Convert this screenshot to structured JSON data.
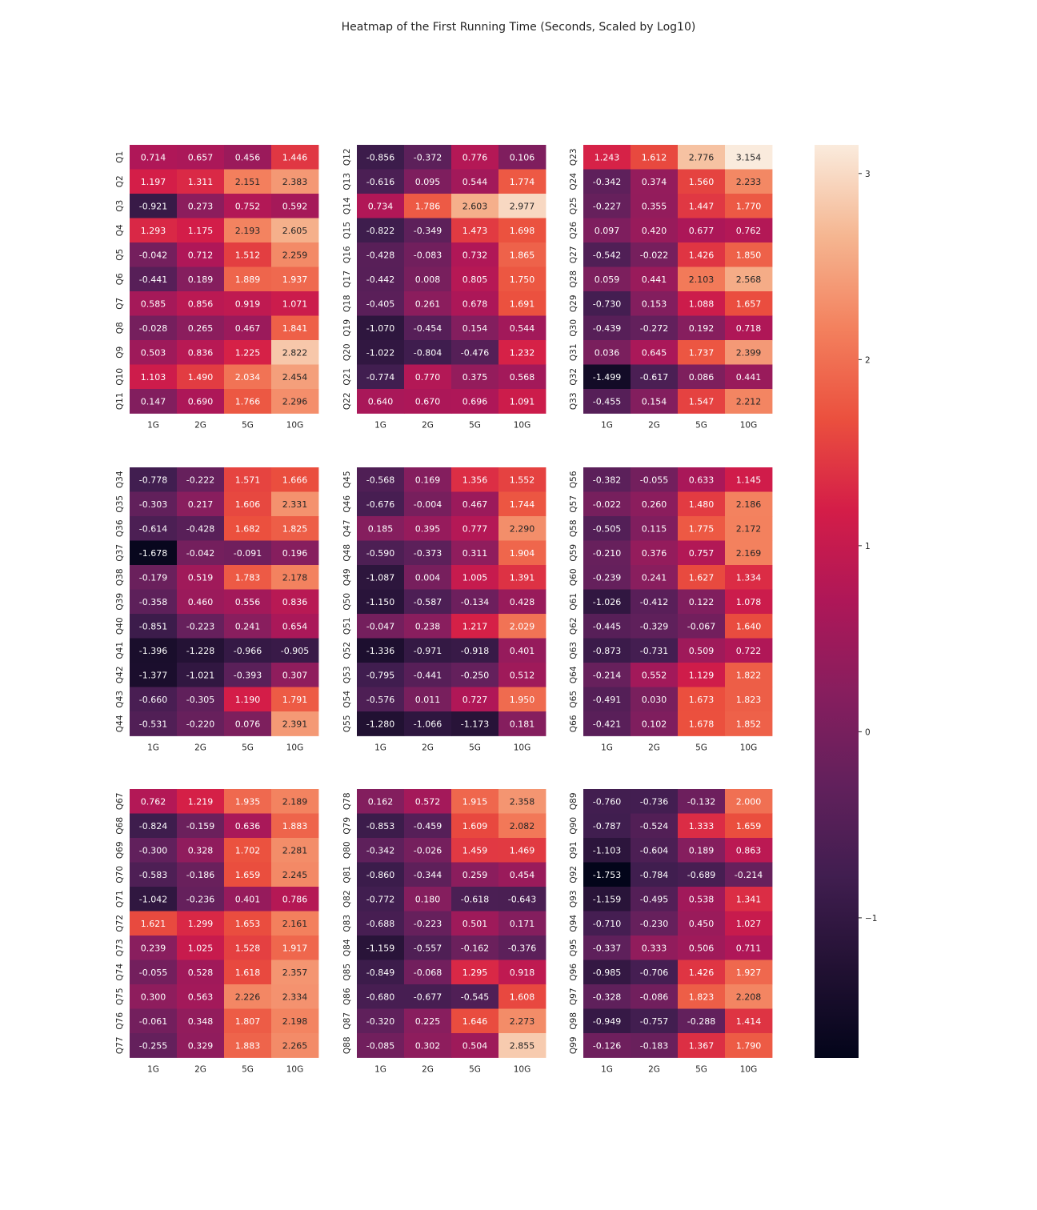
{
  "chart_data": {
    "type": "heatmap",
    "title": "Heatmap of the First Running Time (Seconds, Scaled by Log10)",
    "columns": [
      "1G",
      "2G",
      "5G",
      "10G"
    ],
    "colorbar": {
      "min": -1.753,
      "max": 3.154,
      "ticks": [
        -1,
        0,
        1,
        2,
        3
      ],
      "tick_labels": [
        "−1",
        "0",
        "1",
        "2",
        "3"
      ]
    },
    "panels": [
      {
        "rows": [
          "Q1",
          "Q2",
          "Q3",
          "Q4",
          "Q5",
          "Q6",
          "Q7",
          "Q8",
          "Q9",
          "Q10",
          "Q11"
        ],
        "values": [
          [
            0.714,
            0.657,
            0.456,
            1.446
          ],
          [
            1.197,
            1.311,
            2.151,
            2.383
          ],
          [
            -0.921,
            0.273,
            0.752,
            0.592
          ],
          [
            1.293,
            1.175,
            2.193,
            2.605
          ],
          [
            -0.042,
            0.712,
            1.512,
            2.259
          ],
          [
            -0.441,
            0.189,
            1.889,
            1.937
          ],
          [
            0.585,
            0.856,
            0.919,
            1.071
          ],
          [
            -0.028,
            0.265,
            0.467,
            1.841
          ],
          [
            0.503,
            0.836,
            1.225,
            2.822
          ],
          [
            1.103,
            1.49,
            2.034,
            2.454
          ],
          [
            0.147,
            0.69,
            1.766,
            2.296
          ]
        ]
      },
      {
        "rows": [
          "Q12",
          "Q13",
          "Q14",
          "Q15",
          "Q16",
          "Q17",
          "Q18",
          "Q19",
          "Q20",
          "Q21",
          "Q22"
        ],
        "values": [
          [
            -0.856,
            -0.372,
            0.776,
            0.106
          ],
          [
            -0.616,
            0.095,
            0.544,
            1.774
          ],
          [
            0.734,
            1.786,
            2.603,
            2.977
          ],
          [
            -0.822,
            -0.349,
            1.473,
            1.698
          ],
          [
            -0.428,
            -0.083,
            0.732,
            1.865
          ],
          [
            -0.442,
            0.008,
            0.805,
            1.75
          ],
          [
            -0.405,
            0.261,
            0.678,
            1.691
          ],
          [
            -1.07,
            -0.454,
            0.154,
            0.544
          ],
          [
            -1.022,
            -0.804,
            -0.476,
            1.232
          ],
          [
            -0.774,
            0.77,
            0.375,
            0.568
          ],
          [
            0.64,
            0.67,
            0.696,
            1.091
          ]
        ]
      },
      {
        "rows": [
          "Q23",
          "Q24",
          "Q25",
          "Q26",
          "Q27",
          "Q28",
          "Q29",
          "Q30",
          "Q31",
          "Q32",
          "Q33"
        ],
        "values": [
          [
            1.243,
            1.612,
            2.776,
            3.154
          ],
          [
            -0.342,
            0.374,
            1.56,
            2.233
          ],
          [
            -0.227,
            0.355,
            1.447,
            1.77
          ],
          [
            0.097,
            0.42,
            0.677,
            0.762
          ],
          [
            -0.542,
            -0.022,
            1.426,
            1.85
          ],
          [
            0.059,
            0.441,
            2.103,
            2.568
          ],
          [
            -0.73,
            0.153,
            1.088,
            1.657
          ],
          [
            -0.439,
            -0.272,
            0.192,
            0.718
          ],
          [
            0.036,
            0.645,
            1.737,
            2.399
          ],
          [
            -1.499,
            -0.617,
            0.086,
            0.441
          ],
          [
            -0.455,
            0.154,
            1.547,
            2.212
          ]
        ]
      },
      {
        "rows": [
          "Q34",
          "Q35",
          "Q36",
          "Q37",
          "Q38",
          "Q39",
          "Q40",
          "Q41",
          "Q42",
          "Q43",
          "Q44"
        ],
        "values": [
          [
            -0.778,
            -0.222,
            1.571,
            1.666
          ],
          [
            -0.303,
            0.217,
            1.606,
            2.331
          ],
          [
            -0.614,
            -0.428,
            1.682,
            1.825
          ],
          [
            -1.678,
            -0.042,
            -0.091,
            0.196
          ],
          [
            -0.179,
            0.519,
            1.783,
            2.178
          ],
          [
            -0.358,
            0.46,
            0.556,
            0.836
          ],
          [
            -0.851,
            -0.223,
            0.241,
            0.654
          ],
          [
            -1.396,
            -1.228,
            -0.966,
            -0.905
          ],
          [
            -1.377,
            -1.021,
            -0.393,
            0.307
          ],
          [
            -0.66,
            -0.305,
            1.19,
            1.791
          ],
          [
            -0.531,
            -0.22,
            0.076,
            2.391
          ]
        ]
      },
      {
        "rows": [
          "Q45",
          "Q46",
          "Q47",
          "Q48",
          "Q49",
          "Q50",
          "Q51",
          "Q52",
          "Q53",
          "Q54",
          "Q55"
        ],
        "values": [
          [
            -0.568,
            0.169,
            1.356,
            1.552
          ],
          [
            -0.676,
            -0.004,
            0.467,
            1.744
          ],
          [
            0.185,
            0.395,
            0.777,
            2.29
          ],
          [
            -0.59,
            -0.373,
            0.311,
            1.904
          ],
          [
            -1.087,
            0.004,
            1.005,
            1.391
          ],
          [
            -1.15,
            -0.587,
            -0.134,
            0.428
          ],
          [
            -0.047,
            0.238,
            1.217,
            2.029
          ],
          [
            -1.336,
            -0.971,
            -0.918,
            0.401
          ],
          [
            -0.795,
            -0.441,
            -0.25,
            0.512
          ],
          [
            -0.576,
            0.011,
            0.727,
            1.95
          ],
          [
            -1.28,
            -1.066,
            -1.173,
            0.181
          ]
        ]
      },
      {
        "rows": [
          "Q56",
          "Q57",
          "Q58",
          "Q59",
          "Q60",
          "Q61",
          "Q62",
          "Q63",
          "Q64",
          "Q65",
          "Q66"
        ],
        "values": [
          [
            -0.382,
            -0.055,
            0.633,
            1.145
          ],
          [
            -0.022,
            0.26,
            1.48,
            2.186
          ],
          [
            -0.505,
            0.115,
            1.775,
            2.172
          ],
          [
            -0.21,
            0.376,
            0.757,
            2.169
          ],
          [
            -0.239,
            0.241,
            1.627,
            1.334
          ],
          [
            -1.026,
            -0.412,
            0.122,
            1.078
          ],
          [
            -0.445,
            -0.329,
            -0.067,
            1.64
          ],
          [
            -0.873,
            -0.731,
            0.509,
            0.722
          ],
          [
            -0.214,
            0.552,
            1.129,
            1.822
          ],
          [
            -0.491,
            0.03,
            1.673,
            1.823
          ],
          [
            -0.421,
            0.102,
            1.678,
            1.852
          ]
        ]
      },
      {
        "rows": [
          "Q67",
          "Q68",
          "Q69",
          "Q70",
          "Q71",
          "Q72",
          "Q73",
          "Q74",
          "Q75",
          "Q76",
          "Q77"
        ],
        "values": [
          [
            0.762,
            1.219,
            1.935,
            2.189
          ],
          [
            -0.824,
            -0.159,
            0.636,
            1.883
          ],
          [
            -0.3,
            0.328,
            1.702,
            2.281
          ],
          [
            -0.583,
            -0.186,
            1.659,
            2.245
          ],
          [
            -1.042,
            -0.236,
            0.401,
            0.786
          ],
          [
            1.621,
            1.299,
            1.653,
            2.161
          ],
          [
            0.239,
            1.025,
            1.528,
            1.917
          ],
          [
            -0.055,
            0.528,
            1.618,
            2.357
          ],
          [
            0.3,
            0.563,
            2.226,
            2.334
          ],
          [
            -0.061,
            0.348,
            1.807,
            2.198
          ],
          [
            -0.255,
            0.329,
            1.883,
            2.265
          ]
        ]
      },
      {
        "rows": [
          "Q78",
          "Q79",
          "Q80",
          "Q81",
          "Q82",
          "Q83",
          "Q84",
          "Q85",
          "Q86",
          "Q87",
          "Q88"
        ],
        "values": [
          [
            0.162,
            0.572,
            1.915,
            2.358
          ],
          [
            -0.853,
            -0.459,
            1.609,
            2.082
          ],
          [
            -0.342,
            -0.026,
            1.459,
            1.469
          ],
          [
            -0.86,
            -0.344,
            0.259,
            0.454
          ],
          [
            -0.772,
            0.18,
            -0.618,
            -0.643
          ],
          [
            -0.688,
            -0.223,
            0.501,
            0.171
          ],
          [
            -1.159,
            -0.557,
            -0.162,
            -0.376
          ],
          [
            -0.849,
            -0.068,
            1.295,
            0.918
          ],
          [
            -0.68,
            -0.677,
            -0.545,
            1.608
          ],
          [
            -0.32,
            0.225,
            1.646,
            2.273
          ],
          [
            -0.085,
            0.302,
            0.504,
            2.855
          ]
        ]
      },
      {
        "rows": [
          "Q89",
          "Q90",
          "Q91",
          "Q92",
          "Q93",
          "Q94",
          "Q95",
          "Q96",
          "Q97",
          "Q98",
          "Q99"
        ],
        "values": [
          [
            -0.76,
            -0.736,
            -0.132,
            2.0
          ],
          [
            -0.787,
            -0.524,
            1.333,
            1.659
          ],
          [
            -1.103,
            -0.604,
            0.189,
            0.863
          ],
          [
            -1.753,
            -0.784,
            -0.689,
            -0.214
          ],
          [
            -1.159,
            -0.495,
            0.538,
            1.341
          ],
          [
            -0.71,
            -0.23,
            0.45,
            1.027
          ],
          [
            -0.337,
            0.333,
            0.506,
            0.711
          ],
          [
            -0.985,
            -0.706,
            1.426,
            1.927
          ],
          [
            -0.328,
            -0.086,
            1.823,
            2.208
          ],
          [
            -0.949,
            -0.757,
            -0.288,
            1.414
          ],
          [
            -0.126,
            -0.183,
            1.367,
            1.79
          ]
        ]
      }
    ]
  }
}
